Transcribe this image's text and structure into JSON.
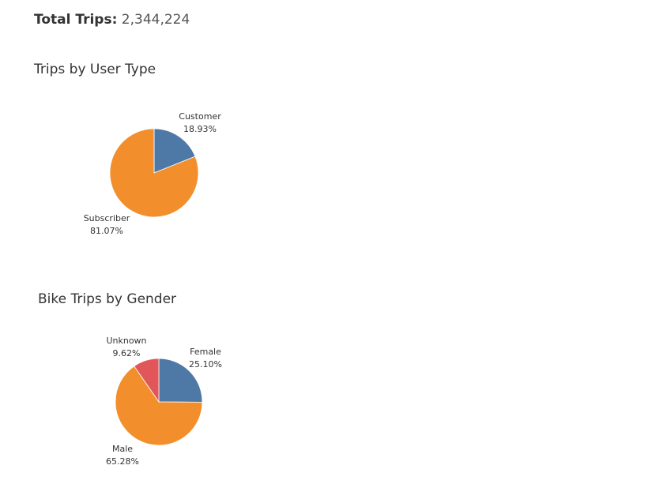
{
  "summary": {
    "total_label": "Total Trips:",
    "total_value": "2,344,224"
  },
  "chart_data": [
    {
      "type": "pie",
      "title": "Trips by User Type",
      "slices": [
        {
          "label": "Customer",
          "value": 18.93,
          "display": "18.93%",
          "color": "#4e79a7"
        },
        {
          "label": "Subscriber",
          "value": 81.07,
          "display": "81.07%",
          "color": "#f28e2b"
        }
      ]
    },
    {
      "type": "pie",
      "title": "Bike Trips by Gender",
      "slices": [
        {
          "label": "Female",
          "value": 25.1,
          "display": "25.10%",
          "color": "#4e79a7"
        },
        {
          "label": "Male",
          "value": 65.28,
          "display": "65.28%",
          "color": "#f28e2b"
        },
        {
          "label": "Unknown",
          "value": 9.62,
          "display": "9.62%",
          "color": "#e15759"
        }
      ]
    }
  ]
}
